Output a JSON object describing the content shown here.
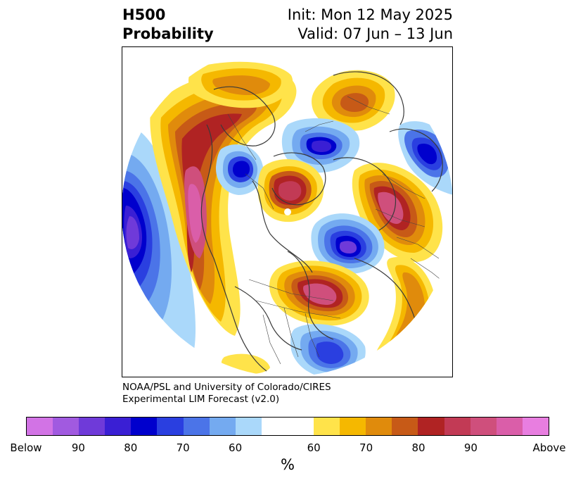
{
  "header": {
    "variable_line1": "H500",
    "variable_line2": "Probability",
    "init_label": "Init: Mon 12 May 2025",
    "valid_label": "Valid: 07 Jun – 13 Jun"
  },
  "credit": {
    "line1": "NOAA/PSL and University of Colorado/CIRES",
    "line2": "Experimental LIM Forecast (v2.0)"
  },
  "colorbar": {
    "unit": "%",
    "ticks": [
      "Below",
      "90",
      "80",
      "70",
      "60",
      "60",
      "70",
      "80",
      "90",
      "Above"
    ],
    "colors": [
      "#d273e5",
      "#a15ae0",
      "#6f3ad9",
      "#3a1fd4",
      "#0000cd",
      "#2a3fe0",
      "#4b74e8",
      "#74aaf0",
      "#aad8fa",
      "#ffffff",
      "#ffe34a",
      "#f5b800",
      "#e08b0c",
      "#c75a17",
      "#b02323",
      "#c23a55",
      "#cf4f7c",
      "#da5ea9",
      "#e87ee0"
    ]
  },
  "map": {
    "projection": "north polar stereographic",
    "colors": {
      "coast": "#3a3a3a",
      "border": "#444444"
    }
  }
}
